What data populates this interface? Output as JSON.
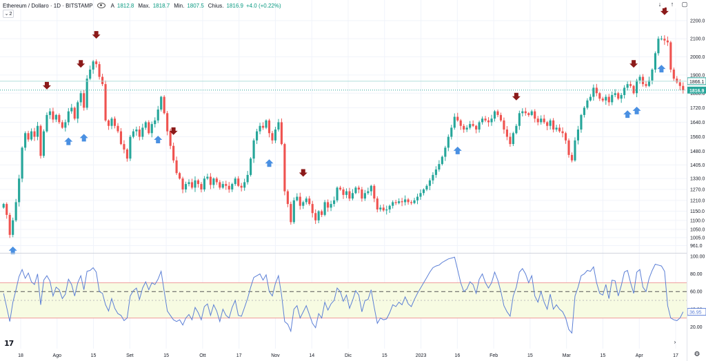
{
  "legend": {
    "symbol": "Ethereum / Dollaro · 1D · BITSTAMP",
    "open_label": "A",
    "open_value": "1812.8",
    "high_label": "Max.",
    "high_value": "1818.7",
    "low_label": "Min.",
    "low_value": "1807.5",
    "close_label": "Chius.",
    "close_value": "1816.9",
    "change": "+4.0 (+0.22%)",
    "indicator_count": "2"
  },
  "controls": {
    "down_arrow": "↓",
    "up_arrow": "↑",
    "maximize": "▢"
  },
  "logo_text": "17",
  "colors": {
    "up": "#26a69a",
    "down": "#ef5350",
    "rsi_line": "#5b7fd6",
    "band": "#f7fbe2",
    "band_line": "#ef9a9a",
    "marker_up": "#4a90e2",
    "marker_down": "#8b1a1a",
    "price_tag": "#26a69a"
  },
  "chart_data": [
    {
      "type": "candlestick",
      "title": "Ethereum / Dollaro · 1D · BITSTAMP",
      "x_ticks": [
        "18",
        "Ago",
        "15",
        "Set",
        "15",
        "Ott",
        "17",
        "Nov",
        "14",
        "Dic",
        "15",
        "2023",
        "16",
        "Feb",
        "15",
        "Mar",
        "15",
        "Apr",
        "17"
      ],
      "y_ticks": [
        "2200.0",
        "2100.0",
        "2000.0",
        "1900.0",
        "1800.0",
        "1720.0",
        "1640.0",
        "1560.0",
        "1480.0",
        "1405.0",
        "1330.0",
        "1270.0",
        "1210.0",
        "1150.0",
        "1100.0",
        "1050.0",
        "1005.0",
        "961.0"
      ],
      "ylim": [
        940,
        2260
      ],
      "price_labels": {
        "current": "1816.9",
        "line": "1866.1"
      },
      "close": [
        1190,
        1130,
        1020,
        1100,
        1200,
        1330,
        1500,
        1580,
        1545,
        1590,
        1560,
        1620,
        1455,
        1590,
        1680,
        1700,
        1655,
        1680,
        1640,
        1610,
        1640,
        1700,
        1720,
        1660,
        1750,
        1800,
        1720,
        1880,
        1930,
        1975,
        1960,
        1890,
        1850,
        1650,
        1620,
        1660,
        1620,
        1590,
        1520,
        1490,
        1440,
        1560,
        1590,
        1600,
        1560,
        1610,
        1640,
        1580,
        1630,
        1650,
        1710,
        1780,
        1690,
        1590,
        1510,
        1430,
        1360,
        1330,
        1270,
        1300,
        1310,
        1280,
        1320,
        1300,
        1270,
        1330,
        1340,
        1295,
        1330,
        1310,
        1280,
        1300,
        1290,
        1270,
        1300,
        1330,
        1290,
        1280,
        1310,
        1350,
        1440,
        1540,
        1590,
        1620,
        1610,
        1650,
        1580,
        1540,
        1600,
        1640,
        1520,
        1260,
        1190,
        1090,
        1210,
        1230,
        1180,
        1200,
        1220,
        1190,
        1140,
        1100,
        1150,
        1130,
        1200,
        1170,
        1190,
        1210,
        1280,
        1270,
        1240,
        1260,
        1220,
        1250,
        1280,
        1270,
        1220,
        1250,
        1260,
        1290,
        1220,
        1160,
        1170,
        1155,
        1160,
        1180,
        1200,
        1195,
        1205,
        1200,
        1215,
        1200,
        1195,
        1210,
        1230,
        1250,
        1270,
        1290,
        1320,
        1350,
        1380,
        1410,
        1450,
        1500,
        1560,
        1610,
        1670,
        1650,
        1620,
        1600,
        1610,
        1630,
        1620,
        1600,
        1640,
        1660,
        1650,
        1640,
        1660,
        1700,
        1680,
        1650,
        1600,
        1560,
        1520,
        1580,
        1620,
        1690,
        1700,
        1690,
        1680,
        1700,
        1660,
        1640,
        1660,
        1640,
        1620,
        1650,
        1600,
        1610,
        1590,
        1580,
        1540,
        1460,
        1430,
        1540,
        1600,
        1680,
        1720,
        1760,
        1780,
        1830,
        1800,
        1770,
        1760,
        1780,
        1750,
        1790,
        1800,
        1770,
        1790,
        1830,
        1850,
        1840,
        1800,
        1870,
        1890,
        1850,
        1840,
        1870,
        1930,
        2020,
        2100,
        2100,
        2090,
        2080,
        1930,
        1880,
        1860,
        1840,
        1817
      ],
      "down_markers": [
        14,
        25,
        30,
        55,
        97,
        166,
        204,
        214,
        234
      ],
      "up_markers": [
        3,
        21,
        26,
        50,
        86,
        147,
        202,
        205,
        213,
        223,
        227
      ]
    },
    {
      "type": "line",
      "title": "RSI",
      "y_ticks": [
        "100.00",
        "80.00",
        "60.00",
        "40.00",
        "20.00"
      ],
      "ylim": [
        0,
        100
      ],
      "current_value": "36.95",
      "bands": {
        "upper": 70,
        "lower": 30,
        "mid": 60,
        "lower_mid": 50
      },
      "values": [
        58,
        42,
        26,
        48,
        62,
        77,
        85,
        75,
        81,
        71,
        68,
        80,
        45,
        73,
        78,
        72,
        55,
        65,
        62,
        52,
        57,
        74,
        68,
        55,
        70,
        78,
        62,
        83,
        84,
        87,
        82,
        60,
        58,
        45,
        38,
        52,
        41,
        35,
        33,
        27,
        30,
        55,
        61,
        64,
        51,
        64,
        71,
        62,
        70,
        68,
        74,
        83,
        60,
        38,
        33,
        28,
        26,
        28,
        22,
        30,
        34,
        28,
        42,
        36,
        28,
        43,
        46,
        33,
        45,
        38,
        26,
        40,
        33,
        30,
        42,
        50,
        33,
        32,
        42,
        52,
        65,
        76,
        78,
        80,
        73,
        79,
        60,
        55,
        69,
        78,
        56,
        26,
        23,
        15,
        40,
        44,
        30,
        37,
        44,
        34,
        24,
        19,
        35,
        30,
        48,
        39,
        46,
        50,
        64,
        60,
        49,
        56,
        41,
        50,
        61,
        56,
        37,
        50,
        51,
        62,
        42,
        24,
        30,
        28,
        29,
        36,
        45,
        43,
        48,
        45,
        54,
        46,
        43,
        51,
        58,
        64,
        70,
        76,
        82,
        87,
        89,
        90,
        93,
        95,
        97,
        98,
        99,
        85,
        70,
        60,
        63,
        71,
        68,
        58,
        74,
        80,
        70,
        64,
        70,
        82,
        73,
        60,
        44,
        37,
        32,
        55,
        65,
        82,
        86,
        80,
        70,
        78,
        55,
        48,
        60,
        48,
        40,
        57,
        40,
        45,
        40,
        37,
        30,
        17,
        13,
        55,
        65,
        78,
        80,
        84,
        83,
        88,
        70,
        58,
        56,
        68,
        52,
        73,
        72,
        55,
        67,
        82,
        84,
        70,
        58,
        82,
        85,
        65,
        60,
        75,
        84,
        91,
        90,
        89,
        83,
        44,
        30,
        28,
        27,
        30,
        37
      ]
    }
  ]
}
